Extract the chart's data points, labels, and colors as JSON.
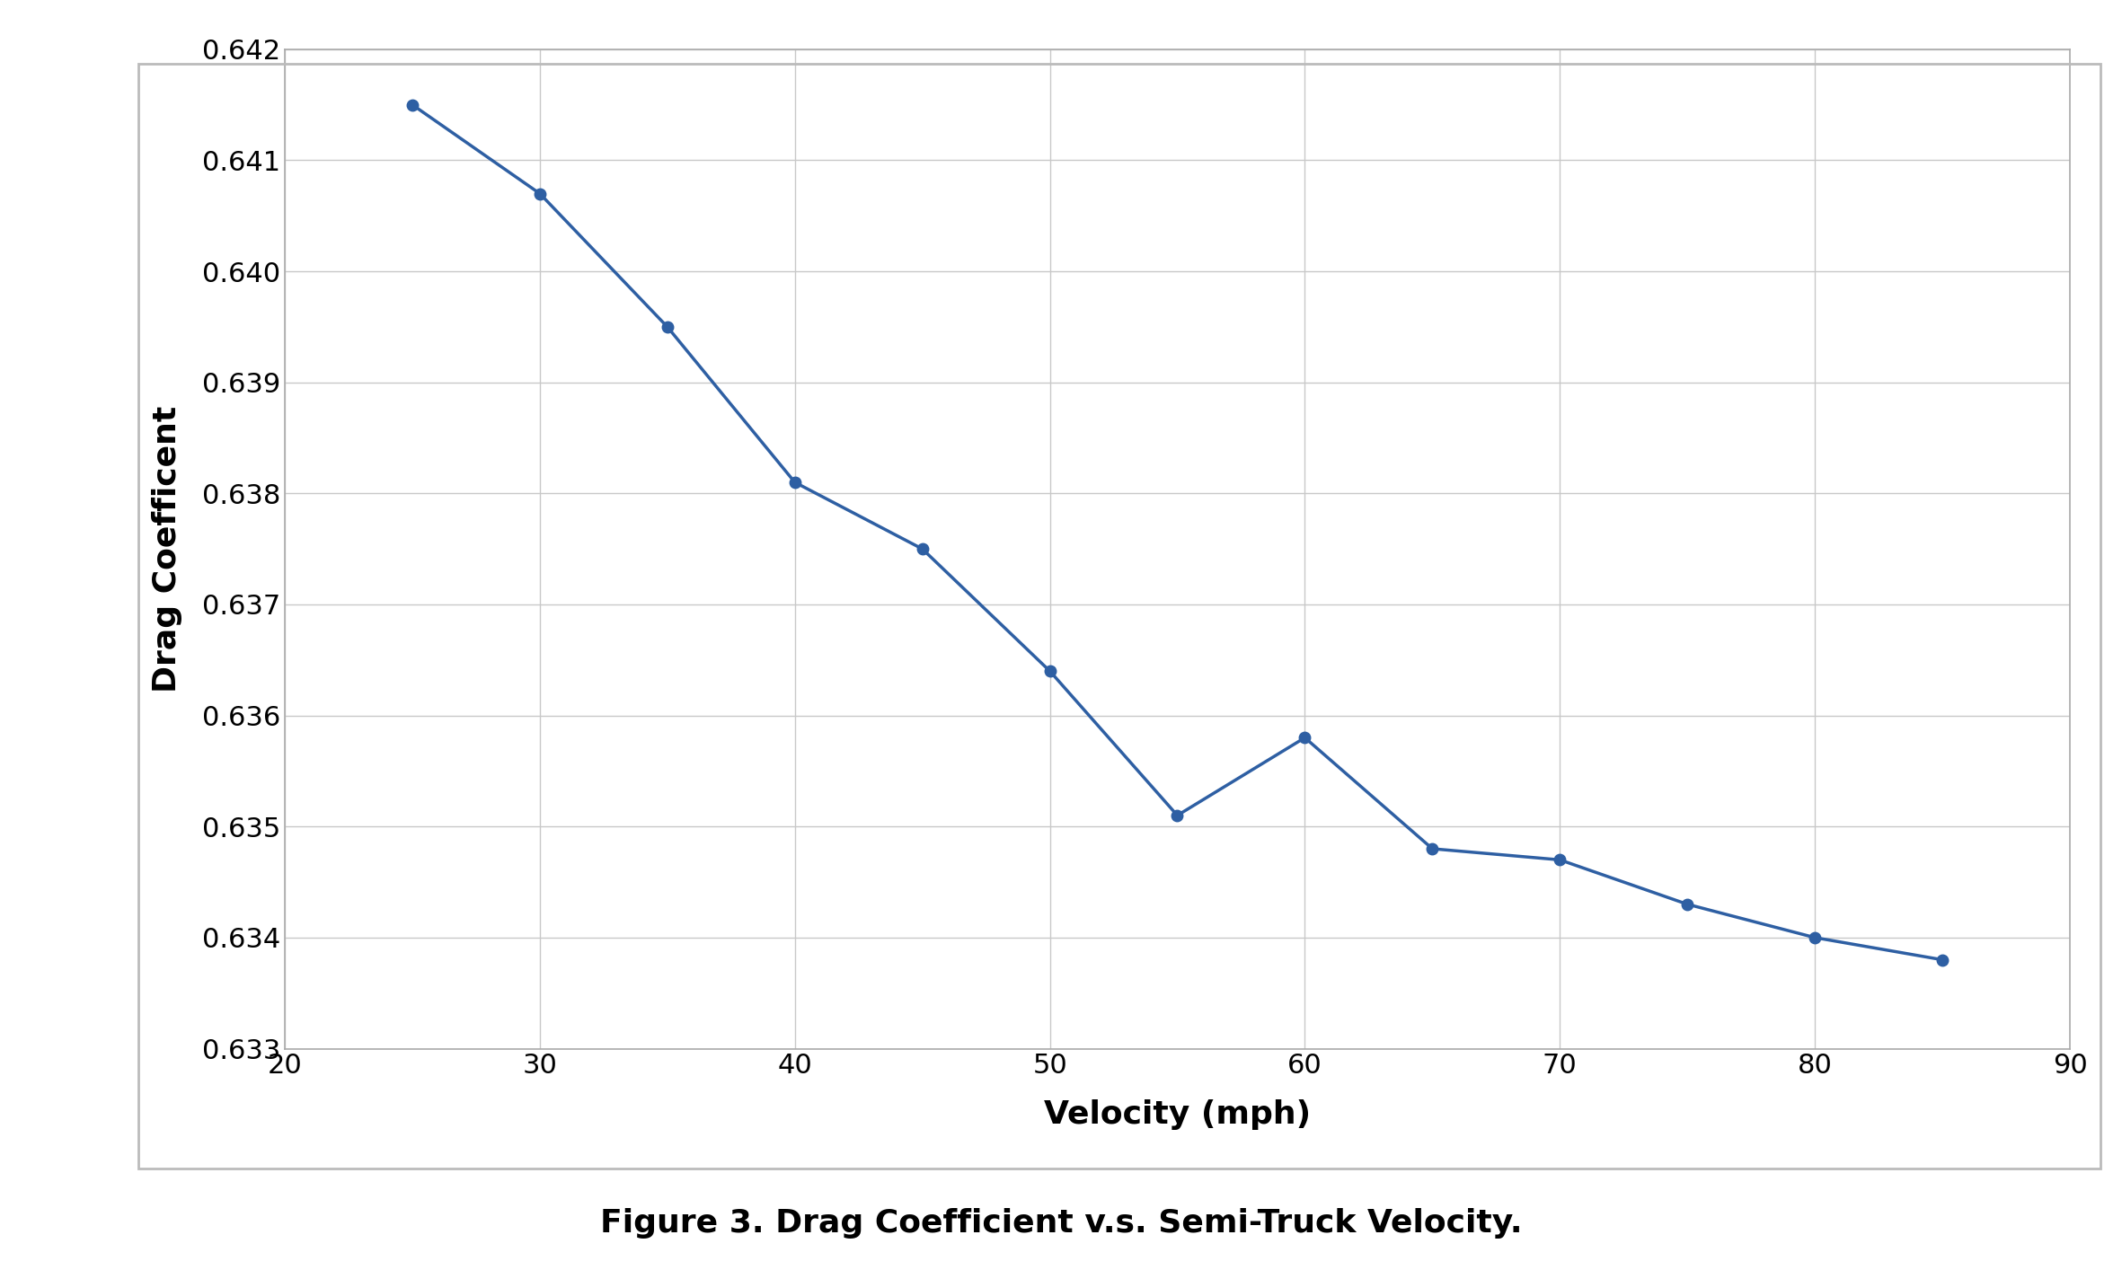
{
  "x": [
    25,
    30,
    35,
    40,
    45,
    50,
    55,
    60,
    65,
    70,
    75,
    80,
    85
  ],
  "y": [
    0.6415,
    0.6407,
    0.6395,
    0.6381,
    0.6375,
    0.6364,
    0.6351,
    0.6358,
    0.6348,
    0.6347,
    0.6343,
    0.634,
    0.6338
  ],
  "line_color": "#2e5fa3",
  "marker_color": "#2e5fa3",
  "xlabel": "Velocity (mph)",
  "ylabel": "Drag Coefficent",
  "caption": "Figure 3. Drag Coefficient v.s. Semi-Truck Velocity.",
  "xlim": [
    20,
    90
  ],
  "ylim": [
    0.633,
    0.642
  ],
  "xticks": [
    20,
    30,
    40,
    50,
    60,
    70,
    80,
    90
  ],
  "yticks": [
    0.633,
    0.634,
    0.635,
    0.636,
    0.637,
    0.638,
    0.639,
    0.64,
    0.641,
    0.642
  ],
  "grid_color": "#c8c8c8",
  "background_color": "#ffffff",
  "plot_bg_color": "#ffffff",
  "border_color": "#aaaaaa",
  "xlabel_fontsize": 26,
  "ylabel_fontsize": 26,
  "tick_fontsize": 22,
  "caption_fontsize": 26,
  "line_width": 2.5,
  "marker_size": 9,
  "figure_border_color": "#bbbbbb"
}
